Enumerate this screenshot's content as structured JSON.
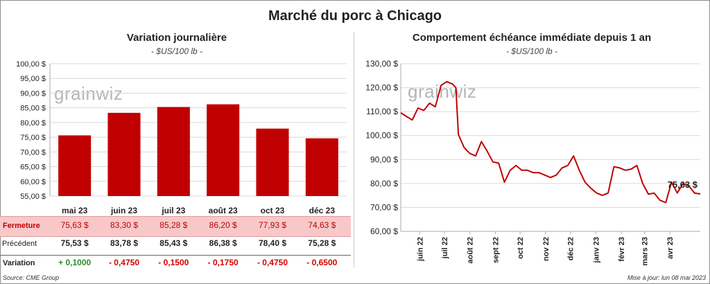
{
  "title": "Marché du porc à Chicago",
  "left": {
    "title": "Variation  journalière",
    "unit": "- $US/100 lb -",
    "watermark": "grainwiz"
  },
  "right": {
    "title": "Comportement  échéance immédiate depuis 1 an",
    "unit": "- $US/100 lb -",
    "watermark": "grainwiz",
    "last_label": "75,63 $"
  },
  "table": {
    "fermeture_label": "Fermeture",
    "precedent_label": "Précédent",
    "variation_label": "Variation",
    "fermeture": [
      "75,63  $",
      "83,30  $",
      "85,28  $",
      "86,20  $",
      "77,93  $",
      "74,63  $"
    ],
    "precedent": [
      "75,53  $",
      "83,78  $",
      "85,43  $",
      "86,38  $",
      "78,40  $",
      "75,28  $"
    ],
    "variation": [
      "+ 0,1000",
      "- 0,4750",
      "- 0,1500",
      "- 0,1750",
      "- 0,4750",
      "- 0,6500"
    ],
    "variation_colors": [
      "#2e8b2e",
      "#d40000",
      "#d40000",
      "#d40000",
      "#d40000",
      "#d40000"
    ]
  },
  "footer": {
    "source": "Source: CME Group",
    "updated": "Mise à jour: lun 08 mai 2023"
  },
  "colors": {
    "bar": "#c00000",
    "line": "#c00000",
    "fermeture_bg": "#f8c8c8"
  },
  "chart_data": [
    {
      "type": "bar",
      "categories": [
        "mai 23",
        "juin 23",
        "juil 23",
        "août 23",
        "oct 23",
        "déc 23"
      ],
      "values": [
        75.63,
        83.3,
        85.28,
        86.2,
        77.93,
        74.63
      ],
      "ylim": [
        55,
        100
      ],
      "yticks": [
        55,
        60,
        65,
        70,
        75,
        80,
        85,
        90,
        95,
        100
      ],
      "ytick_labels": [
        "55,00 $",
        "60,00 $",
        "65,00 $",
        "70,00 $",
        "75,00 $",
        "80,00 $",
        "85,00 $",
        "90,00 $",
        "95,00 $",
        "100,00 $"
      ],
      "grid": true
    },
    {
      "type": "line",
      "x": [
        "2022-05-09",
        "2022-05-16",
        "2022-05-23",
        "2022-05-30",
        "2022-06-06",
        "2022-06-13",
        "2022-06-20",
        "2022-06-27",
        "2022-07-04",
        "2022-07-11",
        "2022-07-15",
        "2022-07-18",
        "2022-07-25",
        "2022-08-01",
        "2022-08-08",
        "2022-08-15",
        "2022-08-22",
        "2022-08-29",
        "2022-09-05",
        "2022-09-12",
        "2022-09-19",
        "2022-09-26",
        "2022-10-03",
        "2022-10-10",
        "2022-10-17",
        "2022-10-24",
        "2022-10-31",
        "2022-11-07",
        "2022-11-14",
        "2022-11-21",
        "2022-11-28",
        "2022-12-05",
        "2022-12-12",
        "2022-12-19",
        "2022-12-26",
        "2023-01-02",
        "2023-01-09",
        "2023-01-16",
        "2023-01-23",
        "2023-01-30",
        "2023-02-06",
        "2023-02-13",
        "2023-02-20",
        "2023-02-27",
        "2023-03-06",
        "2023-03-13",
        "2023-03-20",
        "2023-03-27",
        "2023-04-03",
        "2023-04-10",
        "2023-04-17",
        "2023-04-24",
        "2023-05-01",
        "2023-05-08"
      ],
      "values": [
        109.5,
        108.0,
        106.5,
        111.5,
        110.5,
        113.5,
        112.0,
        121.0,
        122.5,
        121.5,
        120.0,
        100.5,
        95.0,
        92.5,
        91.5,
        97.5,
        93.5,
        89.0,
        88.5,
        80.5,
        85.5,
        87.5,
        85.5,
        85.5,
        84.5,
        84.5,
        83.5,
        82.5,
        83.5,
        86.5,
        87.5,
        91.5,
        85.5,
        80.5,
        78.0,
        76.0,
        75.0,
        76.0,
        87.0,
        86.5,
        85.5,
        86.0,
        87.5,
        80.0,
        75.5,
        76.0,
        73.0,
        72.0,
        80.5,
        76.0,
        80.0,
        79.0,
        76.0,
        75.63
      ],
      "xtick_labels": [
        "juin 22",
        "juil 22",
        "août 22",
        "sept 22",
        "oct 22",
        "nov 22",
        "déc 22",
        "janv 23",
        "févr 23",
        "mars 23",
        "avr 23"
      ],
      "xticks": [
        "2022-06-01",
        "2022-07-01",
        "2022-08-01",
        "2022-09-01",
        "2022-10-01",
        "2022-11-01",
        "2022-12-01",
        "2023-01-01",
        "2023-02-01",
        "2023-03-01",
        "2023-04-01"
      ],
      "ylim": [
        60,
        130
      ],
      "yticks": [
        60,
        70,
        80,
        90,
        100,
        110,
        120,
        130
      ],
      "ytick_labels": [
        "60,00 $",
        "70,00 $",
        "80,00 $",
        "90,00 $",
        "100,00 $",
        "110,00 $",
        "120,00 $",
        "130,00 $"
      ],
      "grid": true
    }
  ]
}
